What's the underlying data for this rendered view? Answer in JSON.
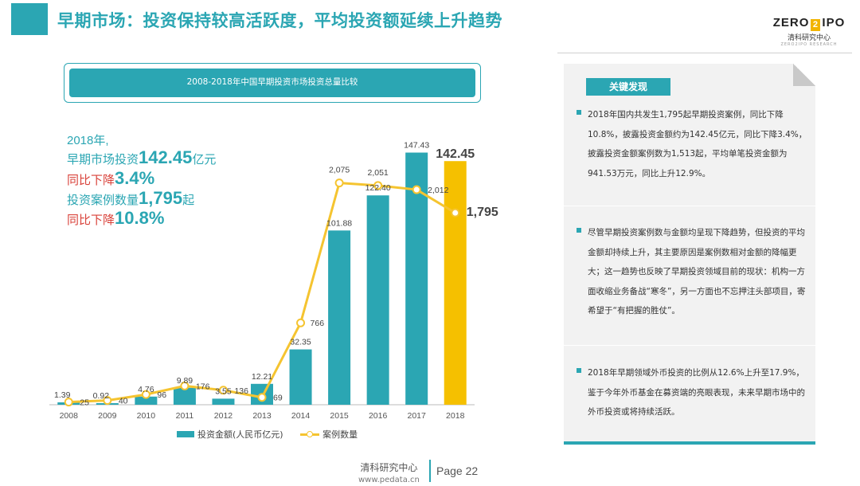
{
  "header": {
    "title": "早期市场：投资保持较高活跃度，平均投资额延续上升趋势",
    "logo_left": "ZERO",
    "logo_box": "2",
    "logo_right": "IPO",
    "logo_sub": "清科研究中心",
    "logo_tiny": "ZERO2IPO RESEARCH",
    "accent_color": "#2ba6b3"
  },
  "chart_title": "2008-2018年中国早期投资市场投资总量比较",
  "stats": {
    "line1": "2018年,",
    "line2_label": "早期市场投资",
    "line2_value": "142.45",
    "line2_unit": "亿元",
    "line3_label": "同比下降",
    "line3_value": "3.4%",
    "line4_label": "投资案例数量",
    "line4_value": "1,795",
    "line4_unit": "起",
    "line5_label": "同比下降",
    "line5_value": "10.8%"
  },
  "chart_data": {
    "type": "bar",
    "categories": [
      "2008",
      "2009",
      "2010",
      "2011",
      "2012",
      "2013",
      "2014",
      "2015",
      "2016",
      "2017",
      "2018"
    ],
    "series": [
      {
        "name": "投资金额(人民币亿元)",
        "type": "bar",
        "values": [
          1.39,
          0.92,
          4.76,
          9.89,
          3.55,
          12.21,
          32.35,
          101.88,
          122.4,
          147.43,
          142.45
        ],
        "labels": [
          "1.39",
          "0.92",
          "4.76",
          "9.89",
          "3.55",
          "12.21",
          "32.35",
          "101.88",
          "122.40",
          "147.43",
          "142.45"
        ],
        "color": "#2ba6b3",
        "highlight_color": "#f5c000"
      },
      {
        "name": "案例数量",
        "type": "line",
        "values": [
          25,
          40,
          96,
          176,
          136,
          69,
          766,
          2075,
          2051,
          2012,
          1795
        ],
        "labels": [
          "25",
          "40",
          "96",
          "176",
          "136",
          "69",
          "766",
          "2,075",
          "2,051",
          "2,012",
          "1,795"
        ],
        "color": "#f5c430"
      }
    ],
    "bar_ylim": [
      0,
      150
    ],
    "line_ylim": [
      0,
      2400
    ]
  },
  "legend": {
    "bar_label": "投资金额(人民币亿元)",
    "line_label": "案例数量"
  },
  "key_findings": {
    "tag": "关键发现",
    "bullets": [
      "2018年国内共发生1,795起早期投资案例，同比下降10.8%，披露投资金额约为142.45亿元，同比下降3.4%，披露投资金额案例数为1,513起，平均单笔投资金额为941.53万元，同比上升12.9%。",
      "尽管早期投资案例数与金额均呈现下降趋势，但投资的平均金额却持续上升，其主要原因是案例数相对金额的降幅更大；这一趋势也反映了早期投资领域目前的现状：机构一方面收缩业务备战“寒冬”，另一方面也不忘押注头部项目，寄希望于“有把握的胜仗”。",
      "2018年早期领域外币投资的比例从12.6%上升至17.9%，鉴于今年外币基金在募资端的亮眼表现，未来早期市场中的外币投资或将持续活跃。"
    ]
  },
  "footer": {
    "org": "清科研究中心",
    "url": "www.pedata.cn",
    "page": "Page 22"
  }
}
